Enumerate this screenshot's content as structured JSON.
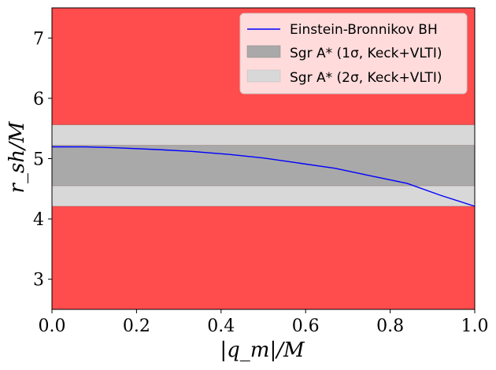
{
  "chart_data": {
    "type": "line",
    "title": "",
    "xlabel": "|q_m|/M",
    "ylabel": "r_sh/M",
    "xlim": [
      0.0,
      1.0
    ],
    "ylim": [
      2.5,
      7.5
    ],
    "x_ticks": [
      "0.0",
      "0.2",
      "0.4",
      "0.6",
      "0.8",
      "1.0"
    ],
    "y_ticks": [
      "3",
      "4",
      "5",
      "6",
      "7"
    ],
    "x_tick_values": [
      0.0,
      0.2,
      0.4,
      0.6,
      0.8,
      1.0
    ],
    "y_tick_values": [
      3,
      4,
      5,
      6,
      7
    ],
    "background_color": "#ff4c4c",
    "bands": [
      {
        "name": "Sgr A* (2σ, Keck+VLTI)",
        "ymin": 4.21,
        "ymax": 5.56,
        "color": "#d8d8d8"
      },
      {
        "name": "Sgr A* (1σ, Keck+VLTI)",
        "ymin": 4.55,
        "ymax": 5.22,
        "color": "#a9a9a9"
      }
    ],
    "series": [
      {
        "name": "Einstein-Bronnikov BH",
        "color": "#0000ff",
        "x": [
          0.0,
          0.08,
          0.15,
          0.25,
          0.33,
          0.42,
          0.5,
          0.58,
          0.67,
          0.75,
          0.84,
          0.92,
          1.0
        ],
        "y": [
          5.196,
          5.195,
          5.18,
          5.15,
          5.12,
          5.07,
          5.01,
          4.93,
          4.84,
          4.72,
          4.59,
          4.39,
          4.21
        ]
      }
    ],
    "legend": {
      "position": "top-right",
      "entries": [
        {
          "label": "Einstein-Bronnikov BH",
          "kind": "line",
          "color": "#0000ff"
        },
        {
          "label": "Sgr A* (1σ, Keck+VLTI)",
          "kind": "patch",
          "color": "#a9a9a9"
        },
        {
          "label": "Sgr A* (2σ, Keck+VLTI)",
          "kind": "patch",
          "color": "#d8d8d8"
        }
      ]
    }
  }
}
